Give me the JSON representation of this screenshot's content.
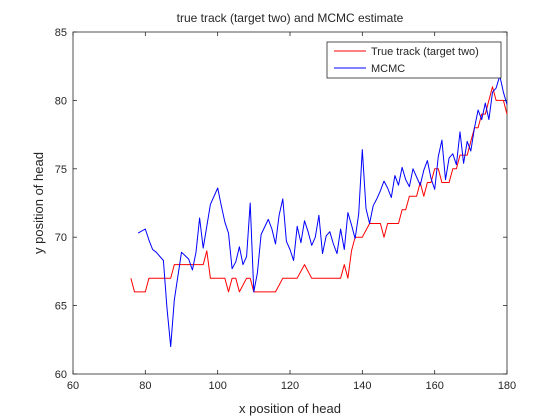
{
  "chart_data": {
    "type": "line",
    "title": "true track (target two) and MCMC estimate",
    "xlabel": "x position of head",
    "ylabel": "y position of head",
    "xlim": [
      60,
      180
    ],
    "ylim": [
      60,
      85
    ],
    "xticks": [
      60,
      80,
      100,
      120,
      140,
      160,
      180
    ],
    "yticks": [
      60,
      65,
      70,
      75,
      80,
      85
    ],
    "grid": false,
    "legend_position": "top-right",
    "series": [
      {
        "name": "True track (target two)",
        "color": "#ff0000",
        "x": [
          76,
          77,
          79,
          80,
          81,
          82,
          84,
          86,
          87,
          88,
          90,
          92,
          94,
          95,
          96,
          97,
          98,
          99,
          100,
          102,
          103,
          104,
          105,
          106,
          108,
          109,
          110,
          112,
          114,
          116,
          118,
          120,
          122,
          124,
          126,
          127,
          128,
          130,
          132,
          134,
          135,
          136,
          137,
          138,
          140,
          142,
          143,
          144,
          145,
          146,
          147,
          148,
          150,
          151,
          152,
          153,
          154,
          155,
          156,
          157,
          158,
          159,
          160,
          161,
          162,
          163,
          164,
          165,
          166,
          167,
          168,
          169,
          170,
          171,
          172,
          173,
          174,
          175,
          176,
          177,
          178,
          179,
          180
        ],
        "y": [
          67,
          66,
          66,
          66,
          67,
          67,
          67,
          67,
          67,
          68,
          68,
          68,
          68,
          68,
          68,
          69,
          67,
          67,
          67,
          67,
          66,
          67,
          67,
          66,
          67,
          67,
          66,
          66,
          66,
          66,
          67,
          67,
          67,
          68,
          67,
          67,
          67,
          67,
          67,
          67,
          68,
          67,
          69,
          70,
          70,
          71,
          71,
          71,
          71,
          70,
          71,
          71,
          71,
          72,
          72,
          73,
          73,
          73,
          74,
          73,
          74,
          74,
          75,
          75,
          74,
          74,
          74,
          75,
          75,
          76,
          76,
          76,
          77,
          78,
          78,
          79,
          79,
          80,
          81,
          80,
          80,
          80,
          79
        ]
      },
      {
        "name": "MCMC",
        "color": "#0000ff",
        "x": [
          78,
          80,
          81,
          82,
          83,
          85,
          86,
          87,
          88,
          90,
          92,
          93,
          94,
          95,
          96,
          98,
          100,
          101,
          102,
          103,
          104,
          105,
          106,
          107,
          108,
          109,
          110,
          111,
          112,
          114,
          115,
          116,
          117,
          118,
          119,
          120,
          121,
          122,
          123,
          124,
          125,
          126,
          127,
          128,
          129,
          130,
          131,
          132,
          133,
          134,
          135,
          136,
          137,
          138,
          139,
          140,
          141,
          142,
          143,
          144,
          145,
          146,
          147,
          148,
          149,
          150,
          151,
          152,
          153,
          154,
          155,
          156,
          157,
          158,
          159,
          160,
          161,
          162,
          163,
          164,
          165,
          166,
          167,
          168,
          169,
          170,
          171,
          172,
          173,
          174,
          175,
          176,
          177,
          178,
          179,
          180
        ],
        "y": [
          70.3,
          70.6,
          69.8,
          69.1,
          68.9,
          68.3,
          64.8,
          62.0,
          65.4,
          68.9,
          68.4,
          67.6,
          68.9,
          71.4,
          69.2,
          72.4,
          73.6,
          72.3,
          71.1,
          70.3,
          67.7,
          68.2,
          69.3,
          68.0,
          68.6,
          72.5,
          66.0,
          67.4,
          70.2,
          71.3,
          70.6,
          69.5,
          71.6,
          72.8,
          69.7,
          69.1,
          68.3,
          70.8,
          69.6,
          71.2,
          70.4,
          69.4,
          70.0,
          71.6,
          68.8,
          70.1,
          70.4,
          69.5,
          68.8,
          70.6,
          69.1,
          71.8,
          70.9,
          69.9,
          71.7,
          76.4,
          72.1,
          71.0,
          72.3,
          72.8,
          73.4,
          74.1,
          73.6,
          72.9,
          74.5,
          73.8,
          75.1,
          74.2,
          73.7,
          75.0,
          74.4,
          73.8,
          74.9,
          75.6,
          74.3,
          73.5,
          75.9,
          77.1,
          74.2,
          75.8,
          76.1,
          75.3,
          77.7,
          75.4,
          77.0,
          76.3,
          78.0,
          79.3,
          78.6,
          79.8,
          78.6,
          80.6,
          80.9,
          81.8,
          80.6,
          79.7
        ]
      }
    ]
  }
}
